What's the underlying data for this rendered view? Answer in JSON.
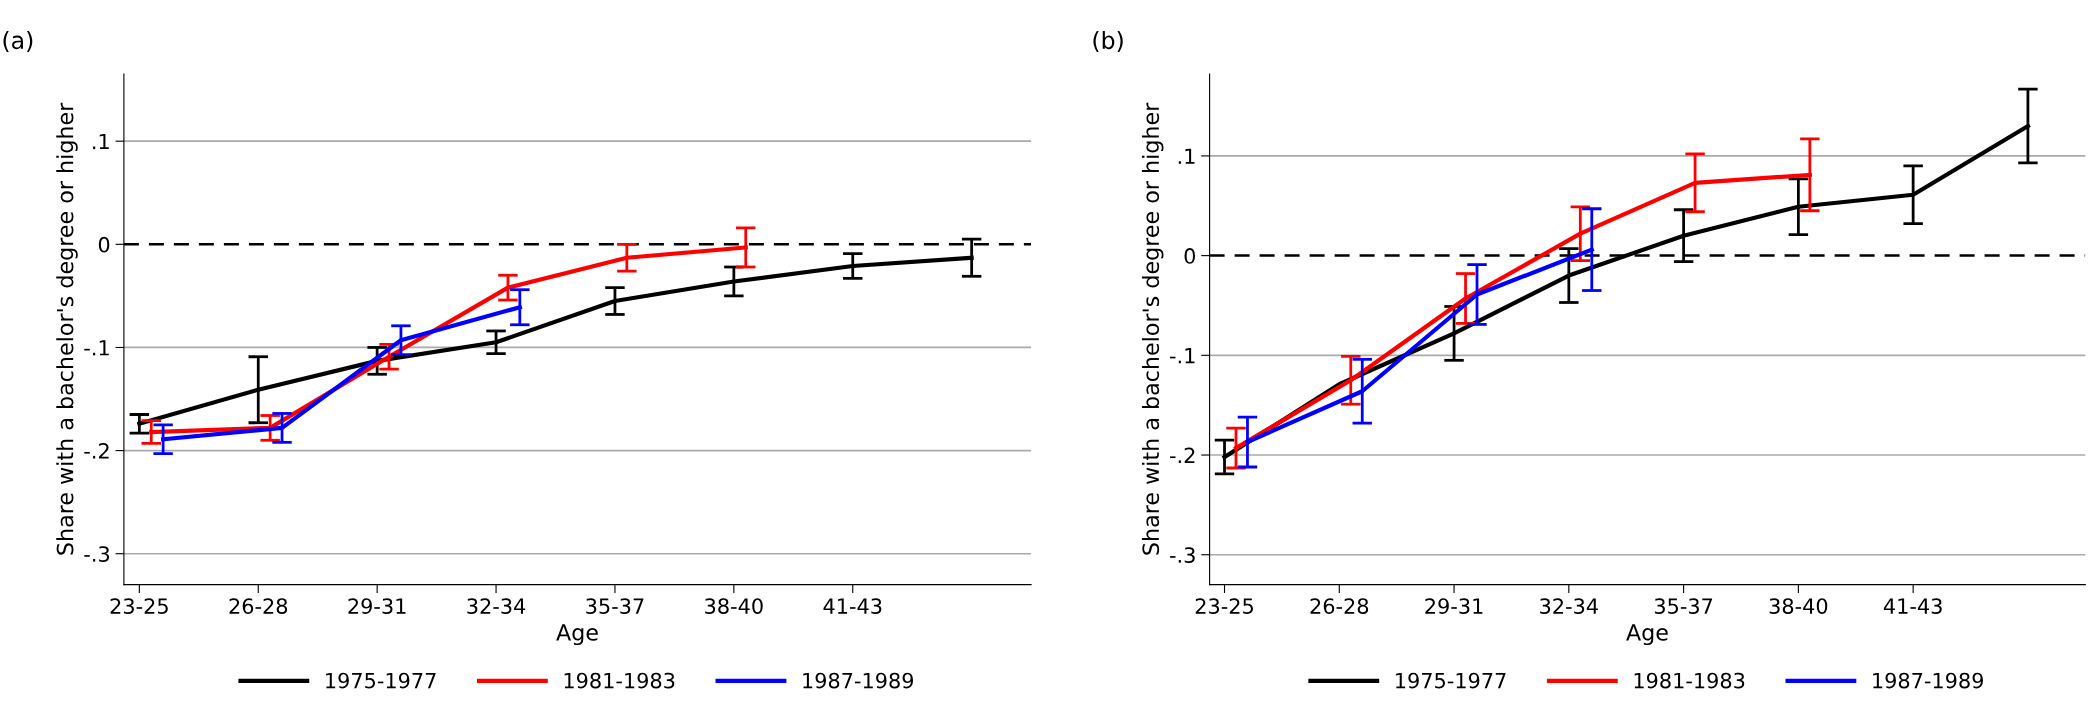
{
  "chart_data": [
    {
      "type": "line",
      "title": "(a)",
      "xlabel": "Age",
      "ylabel": "Share with a bachelor's degree or higher",
      "categories": [
        "23-25",
        "26-28",
        "29-31",
        "32-34",
        "35-37",
        "38-40",
        "41-43",
        null
      ],
      "series": [
        {
          "name": "1975-1977",
          "color": "#000000",
          "values": [
            -0.174,
            -0.141,
            -0.113,
            -0.095,
            -0.055,
            -0.036,
            -0.021,
            -0.013
          ],
          "errors": [
            0.009,
            0.032,
            0.013,
            0.011,
            0.013,
            0.014,
            0.012,
            0.018
          ]
        },
        {
          "name": "1981-1983",
          "color": "#ff0000",
          "values": [
            -0.182,
            -0.178,
            -0.109,
            -0.042,
            -0.013,
            -0.003,
            null,
            null
          ],
          "errors": [
            0.011,
            0.012,
            0.012,
            0.012,
            0.013,
            0.019,
            null,
            null
          ]
        },
        {
          "name": "1987-1989",
          "color": "#0000ff",
          "values": [
            -0.189,
            -0.178,
            -0.093,
            -0.061,
            null,
            null,
            null,
            null
          ],
          "errors": [
            0.014,
            0.014,
            0.014,
            0.017,
            null,
            null,
            null,
            null
          ]
        }
      ],
      "ylim": [
        -0.33,
        0.165
      ],
      "yticks": [
        {
          "value": -0.3,
          "label": "-.3"
        },
        {
          "value": -0.2,
          "label": "-.2"
        },
        {
          "value": -0.1,
          "label": "-.1"
        },
        {
          "value": 0,
          "label": "0"
        },
        {
          "value": 0.1,
          "label": ".1"
        }
      ],
      "grid": "y",
      "legend": "bottom",
      "ref_lines": [
        {
          "axis": "y",
          "value": 0,
          "color": "#000000",
          "line_style": "dashed"
        }
      ]
    },
    {
      "type": "line",
      "title": "(b)",
      "xlabel": "Age",
      "ylabel": "Share with a bachelor's degree or higher",
      "categories": [
        "23-25",
        "26-28",
        "29-31",
        "32-34",
        "35-37",
        "38-40",
        "41-43",
        null
      ],
      "series": [
        {
          "name": "1975-1977",
          "color": "#000000",
          "values": [
            -0.202,
            -0.129,
            -0.078,
            -0.02,
            0.02,
            0.049,
            0.061,
            0.13
          ],
          "errors": [
            0.017,
            null,
            0.027,
            0.027,
            0.026,
            0.028,
            0.029,
            0.037
          ]
        },
        {
          "name": "1981-1983",
          "color": "#ff0000",
          "values": [
            -0.193,
            -0.125,
            -0.043,
            0.022,
            0.073,
            0.081,
            null,
            null
          ],
          "errors": [
            0.02,
            0.024,
            0.025,
            0.027,
            0.029,
            0.036,
            null,
            null
          ]
        },
        {
          "name": "1987-1989",
          "color": "#0000ff",
          "values": [
            -0.187,
            -0.136,
            -0.039,
            0.006,
            null,
            null,
            null,
            null
          ],
          "errors": [
            0.025,
            0.032,
            0.03,
            0.041,
            null,
            null,
            null,
            null
          ]
        }
      ],
      "ylim": [
        -0.33,
        0.182
      ],
      "yticks": [
        {
          "value": -0.3,
          "label": "-.3"
        },
        {
          "value": -0.2,
          "label": "-.2"
        },
        {
          "value": -0.1,
          "label": "-.1"
        },
        {
          "value": 0,
          "label": "0"
        },
        {
          "value": 0.1,
          "label": ".1"
        }
      ],
      "grid": "y",
      "legend": "bottom",
      "ref_lines": [
        {
          "axis": "y",
          "value": 0,
          "color": "#000000",
          "line_style": "dashed"
        }
      ]
    }
  ]
}
